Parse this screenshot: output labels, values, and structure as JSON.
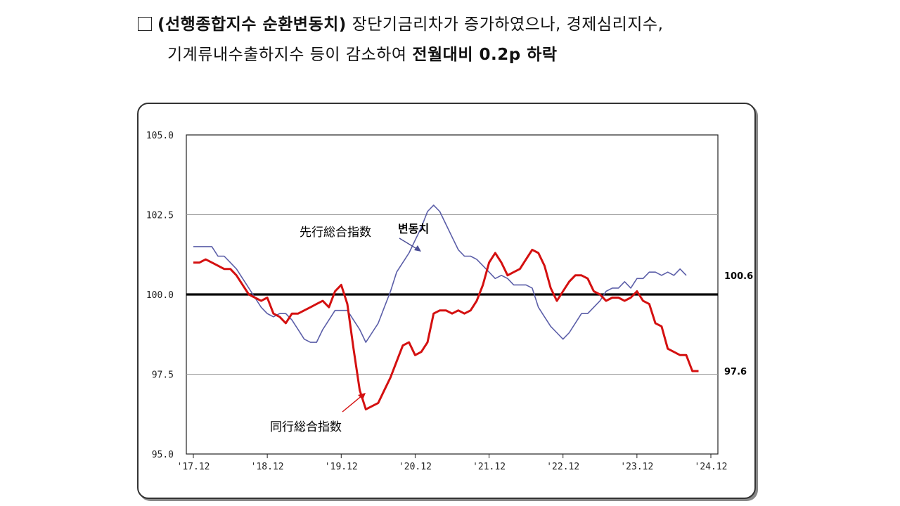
{
  "headline": {
    "line1_bold": "(선행종합지수  순환변동치)",
    "line1_rest": " 장단기금리차가  증가하였으나,  경제심리지수,",
    "line2_rest": "기계류내수출하지수  등이  감소하여 ",
    "line2_bold": "전월대비  0.2p  하락"
  },
  "chart_data": {
    "type": "line",
    "ylim": [
      95.0,
      105.0
    ],
    "yticks": [
      "105.0",
      "102.5",
      "100.0",
      "97.5",
      "95.0"
    ],
    "ytick_values": [
      105.0,
      102.5,
      100.0,
      97.5,
      95.0
    ],
    "xticks": [
      "'17.12",
      "'18.12",
      "'19.12",
      "'20.12",
      "'21.12",
      "'22.12",
      "'23.12",
      "'24.12"
    ],
    "reference_line": 100.0,
    "grid": "horizontal",
    "x_start": "2017-12",
    "series": [
      {
        "name": "先行総合指数 변동치",
        "color": "#5b5ea8",
        "end_label": "100.6",
        "values": [
          101.5,
          101.5,
          101.5,
          101.5,
          101.2,
          101.2,
          101.0,
          100.8,
          100.5,
          100.2,
          99.9,
          99.6,
          99.4,
          99.3,
          99.4,
          99.4,
          99.2,
          98.9,
          98.6,
          98.5,
          98.5,
          98.9,
          99.2,
          99.5,
          99.5,
          99.5,
          99.2,
          98.9,
          98.5,
          98.8,
          99.1,
          99.6,
          100.1,
          100.7,
          101.0,
          101.3,
          101.7,
          102.1,
          102.6,
          102.8,
          102.6,
          102.2,
          101.8,
          101.4,
          101.2,
          101.2,
          101.1,
          100.9,
          100.7,
          100.5,
          100.6,
          100.5,
          100.3,
          100.3,
          100.3,
          100.2,
          99.6,
          99.3,
          99.0,
          98.8,
          98.6,
          98.8,
          99.1,
          99.4,
          99.4,
          99.6,
          99.8,
          100.1,
          100.2,
          100.2,
          100.4,
          100.2,
          100.5,
          100.5,
          100.7,
          100.7,
          100.6,
          100.7,
          100.6,
          100.8,
          100.6
        ]
      },
      {
        "name": "同行総合指数",
        "color": "#d41010",
        "end_label": "97.6",
        "values": [
          101.0,
          101.0,
          101.1,
          101.0,
          100.9,
          100.8,
          100.8,
          100.6,
          100.3,
          100.0,
          99.9,
          99.8,
          99.9,
          99.4,
          99.3,
          99.1,
          99.4,
          99.4,
          99.5,
          99.6,
          99.7,
          99.8,
          99.6,
          100.1,
          100.3,
          99.7,
          98.3,
          97.0,
          96.4,
          96.5,
          96.6,
          97.0,
          97.4,
          97.9,
          98.4,
          98.5,
          98.1,
          98.2,
          98.5,
          99.4,
          99.5,
          99.5,
          99.4,
          99.5,
          99.4,
          99.5,
          99.8,
          100.3,
          101.0,
          101.3,
          101.0,
          100.6,
          100.7,
          100.8,
          101.1,
          101.4,
          101.3,
          100.9,
          100.2,
          99.8,
          100.1,
          100.4,
          100.6,
          100.6,
          100.5,
          100.1,
          100.0,
          99.8,
          99.9,
          99.9,
          99.8,
          99.9,
          100.1,
          99.8,
          99.7,
          99.1,
          99.0,
          98.3,
          98.2,
          98.1,
          98.1,
          97.6,
          97.6
        ]
      }
    ],
    "annotations": [
      {
        "text": "先行総合指数",
        "target_series": 0
      },
      {
        "text": "변동치",
        "target_series": 0
      },
      {
        "text": "同行総合指数",
        "target_series": 1
      }
    ]
  }
}
